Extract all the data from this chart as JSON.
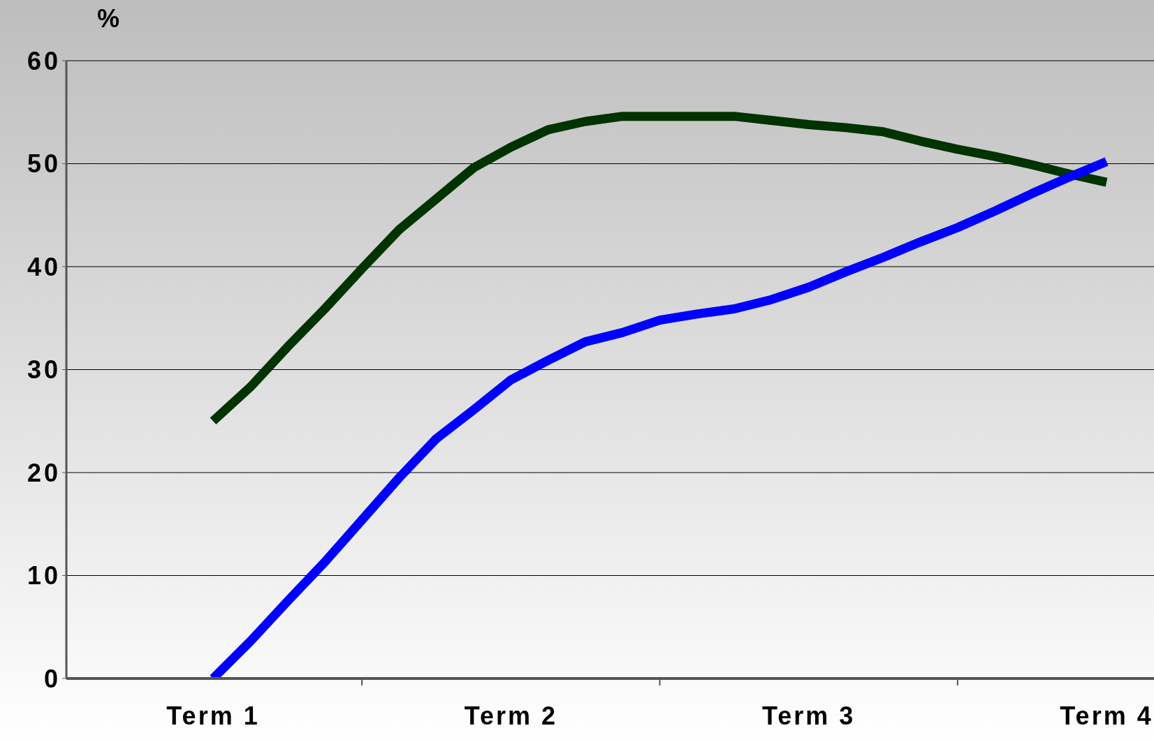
{
  "chart_data": {
    "type": "line",
    "ylabel": "%",
    "categories": [
      "Term 1",
      null,
      null,
      null,
      null,
      null,
      null,
      null,
      "Term 2",
      null,
      null,
      null,
      null,
      null,
      null,
      null,
      "Term 3",
      null,
      null,
      null,
      null,
      null,
      null,
      null,
      "Term 4"
    ],
    "series": [
      {
        "color": "#003300",
        "values": [
          25,
          28.3,
          32.2,
          35.9,
          39.8,
          43.6,
          46.6,
          49.6,
          51.6,
          53.3,
          54.1,
          54.6,
          54.6,
          54.6,
          54.6,
          54.2,
          53.8,
          53.5,
          53.1,
          52.2,
          51.4,
          50.7,
          49.9,
          49.0,
          48.2
        ]
      },
      {
        "color": "#0000ff",
        "values": [
          0,
          3.6,
          7.5,
          11.3,
          15.4,
          19.5,
          23.3,
          26.1,
          29.0,
          30.9,
          32.7,
          33.6,
          34.8,
          35.4,
          35.9,
          36.8,
          38.0,
          39.5,
          40.9,
          42.4,
          43.8,
          45.4,
          47.1,
          48.7,
          50.2
        ]
      }
    ],
    "ylim": [
      0,
      60
    ],
    "yticks": [
      0,
      10,
      20,
      30,
      40,
      50,
      60
    ],
    "grid": "y",
    "legend": false,
    "marker": "none",
    "line_style": "solid"
  }
}
